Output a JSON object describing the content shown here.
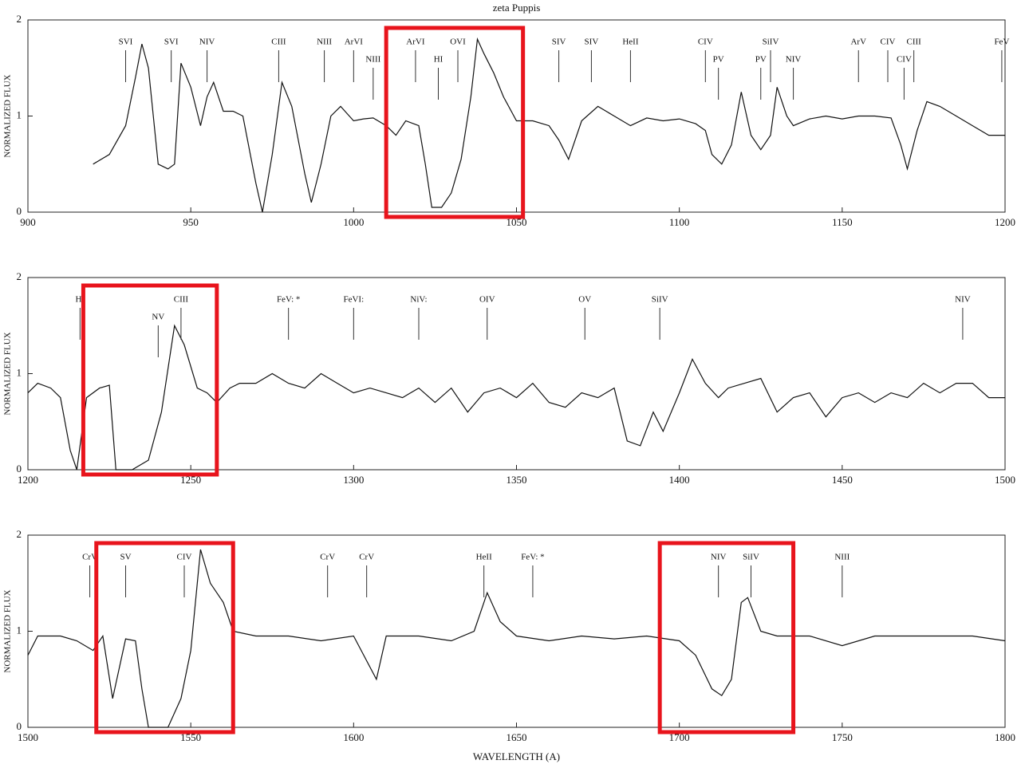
{
  "chart_data": [
    {
      "type": "line",
      "title": "zeta Puppis",
      "y_label": "NORMALIZED FLUX",
      "color": "#111111",
      "xlim": [
        900,
        1200
      ],
      "xticks": [
        900,
        950,
        1000,
        1050,
        1100,
        1150,
        1200
      ],
      "ylim": [
        0,
        2
      ],
      "yticks": [
        0,
        1,
        2
      ],
      "x": [
        920,
        925,
        930,
        933,
        935,
        937,
        940,
        943,
        945,
        947,
        950,
        953,
        955,
        957,
        960,
        963,
        966,
        970,
        972,
        975,
        978,
        981,
        985,
        987,
        990,
        993,
        996,
        1000,
        1003,
        1006,
        1010,
        1013,
        1016,
        1020,
        1022,
        1024,
        1027,
        1030,
        1033,
        1036,
        1038,
        1040,
        1043,
        1046,
        1050,
        1055,
        1060,
        1063,
        1066,
        1070,
        1075,
        1080,
        1085,
        1090,
        1095,
        1100,
        1105,
        1108,
        1110,
        1113,
        1116,
        1119,
        1122,
        1125,
        1128,
        1130,
        1133,
        1135,
        1140,
        1145,
        1150,
        1155,
        1160,
        1165,
        1168,
        1170,
        1173,
        1176,
        1180,
        1185,
        1190,
        1195,
        1200
      ],
      "values": [
        0.5,
        0.6,
        0.9,
        1.4,
        1.75,
        1.5,
        0.5,
        0.45,
        0.5,
        1.55,
        1.3,
        0.9,
        1.2,
        1.35,
        1.05,
        1.05,
        1.0,
        0.3,
        0.0,
        0.6,
        1.35,
        1.1,
        0.4,
        0.1,
        0.5,
        1.0,
        1.1,
        0.95,
        0.97,
        0.98,
        0.9,
        0.8,
        0.95,
        0.9,
        0.5,
        0.05,
        0.05,
        0.2,
        0.55,
        1.2,
        1.8,
        1.65,
        1.45,
        1.2,
        0.95,
        0.95,
        0.9,
        0.75,
        0.55,
        0.95,
        1.1,
        1.0,
        0.9,
        0.98,
        0.95,
        0.97,
        0.92,
        0.85,
        0.6,
        0.5,
        0.7,
        1.25,
        0.8,
        0.65,
        0.8,
        1.3,
        1.0,
        0.9,
        0.97,
        1.0,
        0.97,
        1.0,
        1.0,
        0.98,
        0.7,
        0.45,
        0.85,
        1.15,
        1.1,
        1.0,
        0.9,
        0.8,
        0.8
      ],
      "annotations": [
        {
          "text": "SVI",
          "x": 930
        },
        {
          "text": "SVI",
          "x": 944
        },
        {
          "text": "NIV",
          "x": 955
        },
        {
          "text": "CIII",
          "x": 977
        },
        {
          "text": "NIII",
          "x": 991
        },
        {
          "text": "ArVI",
          "x": 1000
        },
        {
          "text": "NIII",
          "x": 1006
        },
        {
          "text": "ArVI",
          "x": 1019
        },
        {
          "text": "HI",
          "x": 1026
        },
        {
          "text": "OVI",
          "x": 1032
        },
        {
          "text": "SIV",
          "x": 1063
        },
        {
          "text": "SIV",
          "x": 1073
        },
        {
          "text": "HeII",
          "x": 1085
        },
        {
          "text": "CIV",
          "x": 1108
        },
        {
          "text": "PV",
          "x": 1112
        },
        {
          "text": "SiIV",
          "x": 1128
        },
        {
          "text": "PV",
          "x": 1125
        },
        {
          "text": "NIV",
          "x": 1135
        },
        {
          "text": "ArV",
          "x": 1155
        },
        {
          "text": "CIV",
          "x": 1164
        },
        {
          "text": "CIV",
          "x": 1169
        },
        {
          "text": "CIII",
          "x": 1172
        },
        {
          "text": "FeV",
          "x": 1199
        }
      ],
      "highlights": [
        [
          1010,
          1052
        ]
      ]
    },
    {
      "type": "line",
      "y_label": "NORMALIZED FLUX",
      "color": "#111111",
      "xlim": [
        1200,
        1500
      ],
      "xticks": [
        1200,
        1250,
        1300,
        1350,
        1400,
        1450,
        1500
      ],
      "ylim": [
        0,
        2
      ],
      "yticks": [
        0,
        1,
        2
      ],
      "x": [
        1200,
        1203,
        1207,
        1210,
        1213,
        1215,
        1218,
        1222,
        1225,
        1227,
        1232,
        1237,
        1241,
        1245,
        1248,
        1252,
        1255,
        1258,
        1262,
        1265,
        1270,
        1275,
        1280,
        1285,
        1290,
        1295,
        1300,
        1305,
        1310,
        1315,
        1320,
        1325,
        1330,
        1335,
        1340,
        1345,
        1350,
        1355,
        1360,
        1365,
        1370,
        1375,
        1380,
        1384,
        1388,
        1392,
        1395,
        1400,
        1404,
        1408,
        1412,
        1415,
        1420,
        1425,
        1430,
        1435,
        1440,
        1445,
        1450,
        1455,
        1460,
        1465,
        1470,
        1475,
        1480,
        1485,
        1490,
        1495,
        1500
      ],
      "values": [
        0.8,
        0.9,
        0.85,
        0.75,
        0.2,
        0.0,
        0.75,
        0.85,
        0.88,
        0.0,
        0.0,
        0.1,
        0.6,
        1.5,
        1.3,
        0.85,
        0.8,
        0.7,
        0.85,
        0.9,
        0.9,
        1.0,
        0.9,
        0.85,
        1.0,
        0.9,
        0.8,
        0.85,
        0.8,
        0.75,
        0.85,
        0.7,
        0.85,
        0.6,
        0.8,
        0.85,
        0.75,
        0.9,
        0.7,
        0.65,
        0.8,
        0.75,
        0.85,
        0.3,
        0.25,
        0.6,
        0.4,
        0.8,
        1.15,
        0.9,
        0.75,
        0.85,
        0.9,
        0.95,
        0.6,
        0.75,
        0.8,
        0.55,
        0.75,
        0.8,
        0.7,
        0.8,
        0.75,
        0.9,
        0.8,
        0.9,
        0.9,
        0.75,
        0.75
      ],
      "annotations": [
        {
          "text": "HI",
          "x": 1216
        },
        {
          "text": "CIII",
          "x": 1247
        },
        {
          "text": "NV",
          "x": 1240
        },
        {
          "text": "FeV: *",
          "x": 1280
        },
        {
          "text": "FeVI:",
          "x": 1300
        },
        {
          "text": "NiV:",
          "x": 1320
        },
        {
          "text": "OIV",
          "x": 1341
        },
        {
          "text": "OV",
          "x": 1371
        },
        {
          "text": "SiIV",
          "x": 1394
        },
        {
          "text": "NIV",
          "x": 1487
        }
      ],
      "highlights": [
        [
          1217,
          1258
        ]
      ]
    },
    {
      "type": "line",
      "y_label": "NORMALIZED FLUX",
      "x_label": "WAVELENGTH (A)",
      "color": "#111111",
      "xlim": [
        1500,
        1800
      ],
      "xticks": [
        1500,
        1550,
        1600,
        1650,
        1700,
        1750,
        1800
      ],
      "ylim": [
        0,
        2
      ],
      "yticks": [
        0,
        1,
        2
      ],
      "x": [
        1500,
        1503,
        1510,
        1515,
        1520,
        1523,
        1526,
        1530,
        1533,
        1535,
        1537,
        1543,
        1547,
        1550,
        1553,
        1556,
        1560,
        1563,
        1570,
        1580,
        1590,
        1600,
        1607,
        1610,
        1620,
        1630,
        1637,
        1641,
        1645,
        1650,
        1660,
        1670,
        1680,
        1690,
        1700,
        1705,
        1710,
        1713,
        1716,
        1719,
        1721,
        1725,
        1730,
        1740,
        1750,
        1760,
        1770,
        1780,
        1790,
        1800
      ],
      "values": [
        0.75,
        0.95,
        0.95,
        0.9,
        0.8,
        0.95,
        0.3,
        0.92,
        0.9,
        0.4,
        0.0,
        0.0,
        0.3,
        0.8,
        1.85,
        1.5,
        1.3,
        1.0,
        0.95,
        0.95,
        0.9,
        0.95,
        0.5,
        0.95,
        0.95,
        0.9,
        1.0,
        1.4,
        1.1,
        0.95,
        0.9,
        0.95,
        0.92,
        0.95,
        0.9,
        0.75,
        0.4,
        0.33,
        0.5,
        1.3,
        1.35,
        1.0,
        0.95,
        0.95,
        0.85,
        0.95,
        0.95,
        0.95,
        0.95,
        0.9
      ],
      "annotations": [
        {
          "text": "CrV",
          "x": 1519
        },
        {
          "text": "SV",
          "x": 1530
        },
        {
          "text": "CIV",
          "x": 1548
        },
        {
          "text": "CrV",
          "x": 1592
        },
        {
          "text": "CrV",
          "x": 1604
        },
        {
          "text": "HeII",
          "x": 1640
        },
        {
          "text": "FeV: *",
          "x": 1655
        },
        {
          "text": "NIV",
          "x": 1712
        },
        {
          "text": "SiIV",
          "x": 1722
        },
        {
          "text": "NIII",
          "x": 1750
        }
      ],
      "highlights": [
        [
          1521,
          1563
        ],
        [
          1694,
          1735
        ]
      ]
    }
  ]
}
